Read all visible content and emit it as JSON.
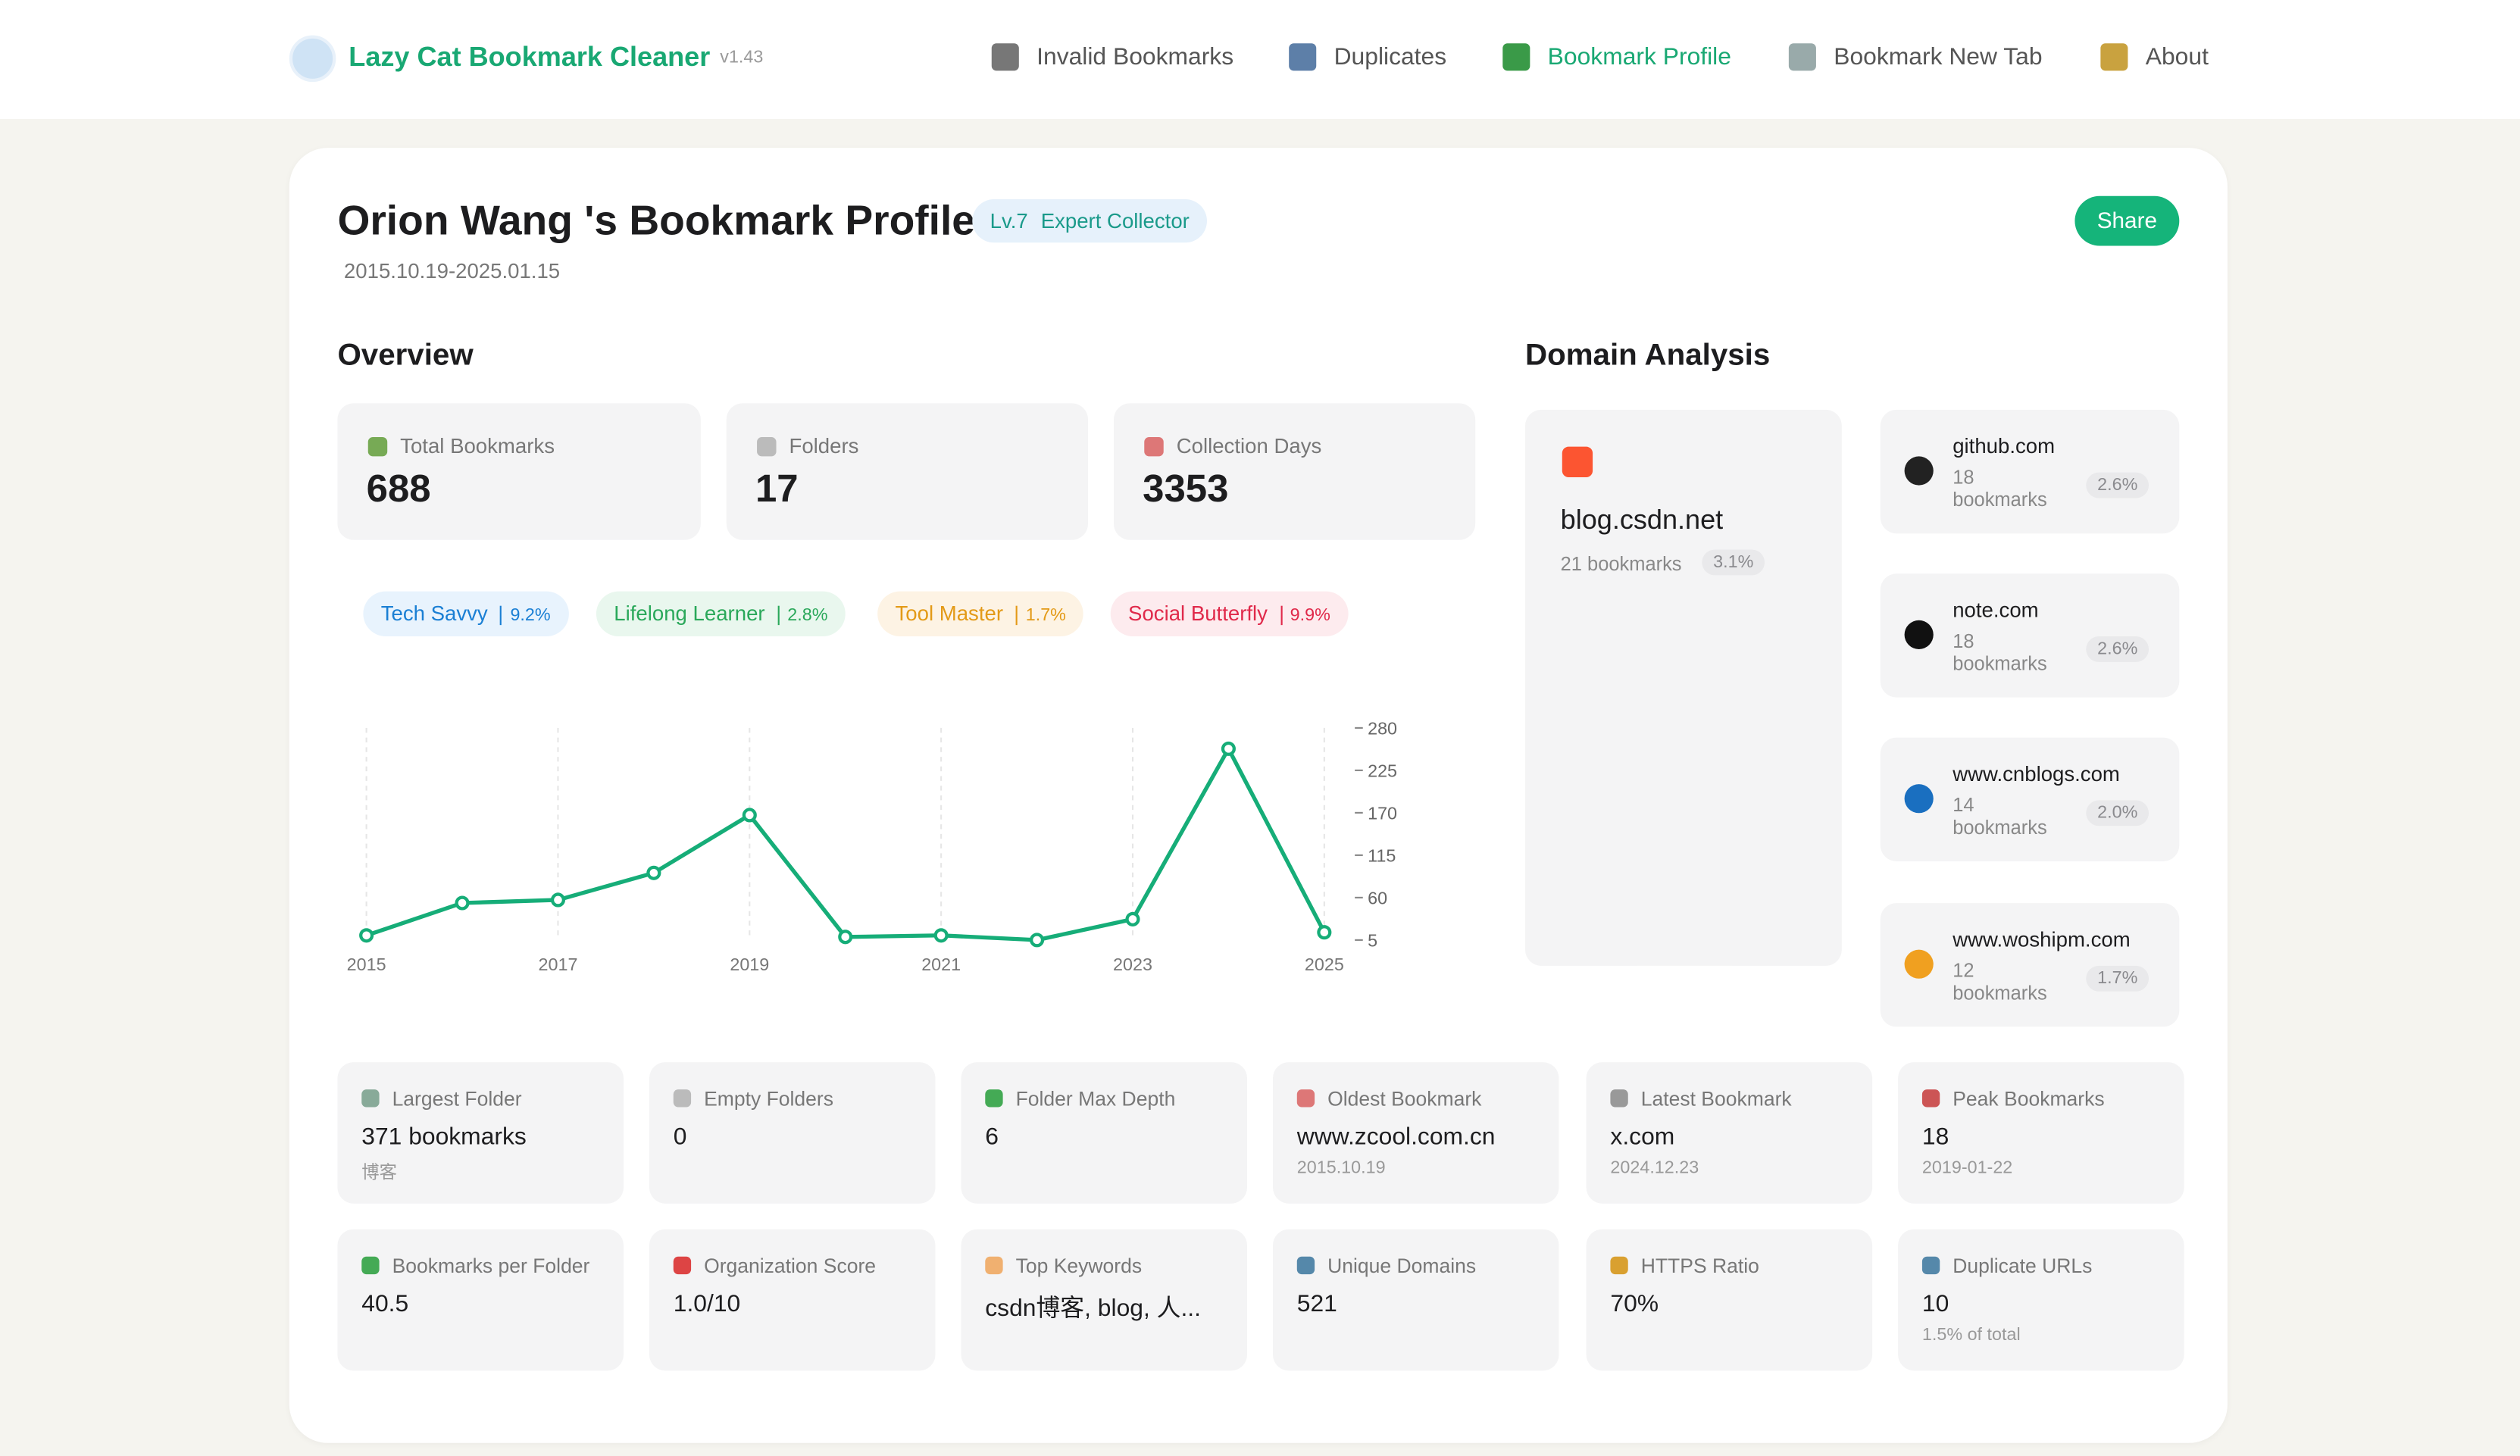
{
  "header": {
    "app_name": "Lazy Cat Bookmark Cleaner",
    "version": "v1.43",
    "nav": [
      "Invalid Bookmarks",
      "Duplicates",
      "Bookmark Profile",
      "Bookmark New Tab",
      "About"
    ]
  },
  "profile": {
    "title": "Orion Wang 's Bookmark Profile",
    "level": "Lv.7",
    "level_name": "Expert Collector",
    "date_range": "2015.10.19-2025.01.15",
    "share": "Share"
  },
  "overview": {
    "heading": "Overview",
    "stats": [
      {
        "label": "Total Bookmarks",
        "value": 688
      },
      {
        "label": "Folders",
        "value": 17
      },
      {
        "label": "Collection Days",
        "value": 3353
      }
    ],
    "tags": [
      {
        "name": "Tech Savvy",
        "percent": "9.2%"
      },
      {
        "name": "Lifelong Learner",
        "percent": "2.8%"
      },
      {
        "name": "Tool Master",
        "percent": "1.7%"
      },
      {
        "name": "Social Butterfly",
        "percent": "9.9%"
      }
    ]
  },
  "chart_data": {
    "type": "line",
    "x": [
      2015,
      2016,
      2017,
      2018,
      2019,
      2020,
      2021,
      2022,
      2023,
      2024,
      2025
    ],
    "series": [
      {
        "color": "#16ad78",
        "values": [
          11,
          53,
          57,
          92,
          167,
          9,
          11,
          5,
          32,
          253,
          15
        ]
      }
    ],
    "xlim": [
      2015,
      2025
    ],
    "xticks": [
      2015,
      2017,
      2019,
      2021,
      2023,
      2025
    ],
    "ylim": [
      5,
      280
    ],
    "yticks": [
      5,
      60,
      115,
      170,
      225,
      280
    ],
    "y_axis_side": "right",
    "grid": "x"
  },
  "domains": {
    "heading": "Domain Analysis",
    "items": [
      {
        "domain": "blog.csdn.net",
        "count": "21 bookmarks",
        "percent": "3.1%"
      },
      {
        "domain": "github.com",
        "count": "18 bookmarks",
        "percent": "2.6%"
      },
      {
        "domain": "note.com",
        "count": "18 bookmarks",
        "percent": "2.6%"
      },
      {
        "domain": "www.cnblogs.com",
        "count": "14 bookmarks",
        "percent": "2.0%"
      },
      {
        "domain": "www.woshipm.com",
        "count": "12 bookmarks",
        "percent": "1.7%"
      }
    ]
  },
  "details": [
    {
      "label": "Largest Folder",
      "value": "371 bookmarks",
      "sub": "博客"
    },
    {
      "label": "Empty Folders",
      "value": "0"
    },
    {
      "label": "Folder Max Depth",
      "value": "6"
    },
    {
      "label": "Oldest Bookmark",
      "value": "www.zcool.com.cn",
      "sub": "2015.10.19"
    },
    {
      "label": "Latest Bookmark",
      "value": "x.com",
      "sub": "2024.12.23"
    },
    {
      "label": "Peak Bookmarks",
      "value": "18",
      "sub": "2019-01-22"
    },
    {
      "label": "Bookmarks per Folder",
      "value": "40.5"
    },
    {
      "label": "Organization Score",
      "value": "1.0/10"
    },
    {
      "label": "Top Keywords",
      "value": "csdn博客, blog, 人..."
    },
    {
      "label": "Unique Domains",
      "value": "521"
    },
    {
      "label": "HTTPS Ratio",
      "value": "70%"
    },
    {
      "label": "Duplicate URLs",
      "value": "10",
      "sub": "1.5% of total"
    }
  ]
}
